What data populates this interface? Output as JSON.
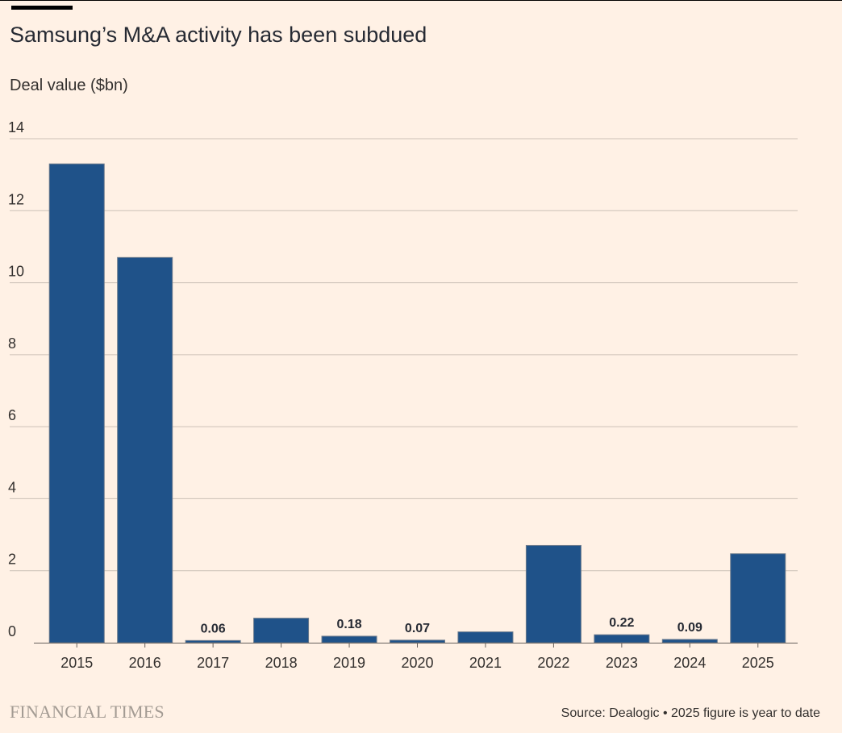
{
  "header": {
    "title": "Samsung’s M&A activity has been subdued",
    "subtitle": "Deal value ($bn)"
  },
  "footer": {
    "brand": "FINANCIAL TIMES",
    "source": "Source: Dealogic • 2025 figure is year to date"
  },
  "colors": {
    "background": "#fff1e5",
    "bar": "#1f5289",
    "gridline": "#ccc1b7",
    "text": "#33302e"
  },
  "chart_data": {
    "type": "bar",
    "title": "Samsung’s M&A activity has been subdued",
    "ylabel": "Deal value ($bn)",
    "xlabel": "",
    "categories": [
      "2015",
      "2016",
      "2017",
      "2018",
      "2019",
      "2020",
      "2021",
      "2022",
      "2023",
      "2024",
      "2025"
    ],
    "values": [
      13.3,
      10.7,
      0.06,
      0.68,
      0.18,
      0.07,
      0.3,
      2.7,
      0.22,
      0.09,
      2.47
    ],
    "data_labels": [
      "",
      "",
      "0.06",
      "",
      "0.18",
      "0.07",
      "",
      "",
      "0.22",
      "0.09",
      ""
    ],
    "ylim": [
      0,
      14
    ],
    "yticks": [
      "0",
      "2",
      "4",
      "6",
      "8",
      "10",
      "12",
      "14"
    ],
    "grid": true,
    "legend": "none"
  }
}
